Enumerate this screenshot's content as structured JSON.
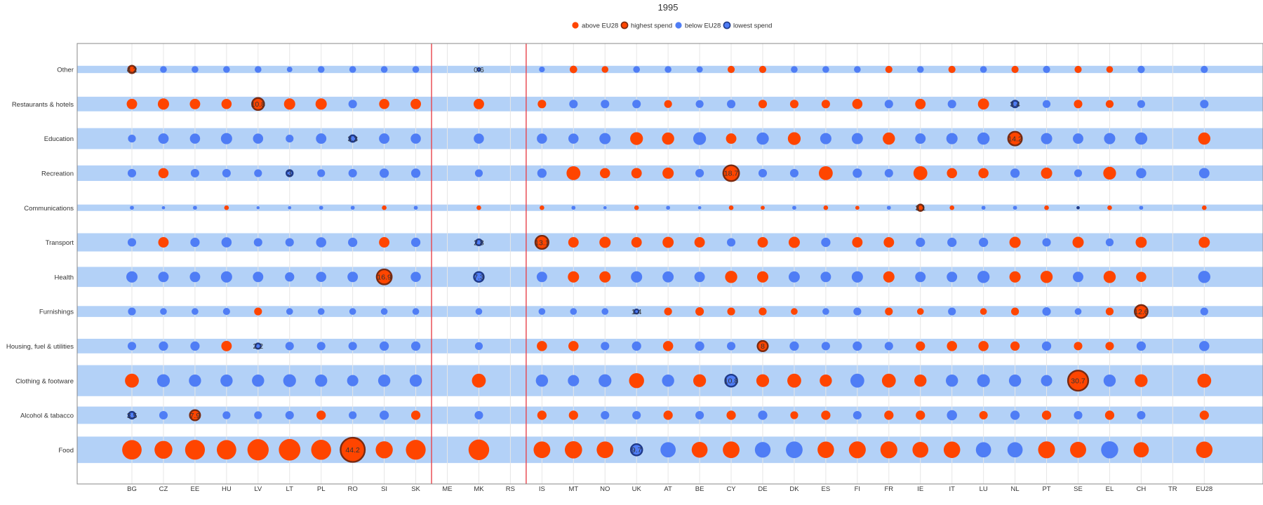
{
  "chart_data": {
    "type": "bubble",
    "title": "1995",
    "legend": {
      "placement": "top-center",
      "items": [
        {
          "key": "above",
          "label": "above EU28",
          "color": "#ff4500",
          "stroke": "none"
        },
        {
          "key": "highest",
          "label": "highest spend",
          "color": "#ff4500",
          "stroke": "#7a2a10"
        },
        {
          "key": "below",
          "label": "below EU28",
          "color": "#4f7df5",
          "stroke": "none"
        },
        {
          "key": "lowest",
          "label": "lowest spend",
          "color": "#4f7df5",
          "stroke": "#1f3a8a"
        }
      ]
    },
    "countries": [
      "BG",
      "CZ",
      "EE",
      "HU",
      "LV",
      "LT",
      "PL",
      "RO",
      "SI",
      "SK",
      "ME",
      "MK",
      "RS",
      "IS",
      "MT",
      "NO",
      "UK",
      "AT",
      "BE",
      "CY",
      "DE",
      "DK",
      "ES",
      "FI",
      "FR",
      "IE",
      "IT",
      "LU",
      "NL",
      "PT",
      "SE",
      "EL",
      "CH",
      "TR",
      "EU28"
    ],
    "separators_after": [
      "SK",
      "RS"
    ],
    "categories": [
      "Other",
      "Restaurants & hotels",
      "Education",
      "Recreation",
      "Communications",
      "Transport",
      "Health",
      "Furnishings",
      "Housing, fuel & utilities",
      "Clothing & footware",
      "Alcohol & tabacco",
      "Food"
    ],
    "category_band_values": [
      4.0,
      8.0,
      11.5,
      8.5,
      3.5,
      10.0,
      11.0,
      6.0,
      8.0,
      17.0,
      9.5,
      14.5
    ],
    "value_codes": "a=above EU28, b=below EU28, h=highest spend, l=lowest spend, n=no data",
    "series": [
      {
        "name": "Other",
        "values": [
          4.2,
          3.4,
          3.4,
          3.4,
          3.4,
          2.3,
          3.4,
          3.4,
          3.4,
          3.4,
          null,
          0.6,
          null,
          2.5,
          4.2,
          3.4,
          3.4,
          3.4,
          3.0,
          3.8,
          3.8,
          3.4,
          3.4,
          3.4,
          3.8,
          3.4,
          3.8,
          3.4,
          3.8,
          3.8,
          3.8,
          3.4,
          4.0,
          null,
          3.8
        ],
        "status": "hbbbbbbbbbnlnbaabbbaabbbabababaabana"
      },
      {
        "name": "Restaurants & hotels",
        "values": [
          8.2,
          9.5,
          8.2,
          7.8,
          10.8,
          9.5,
          9.5,
          5.4,
          7.8,
          8.2,
          null,
          8.2,
          null,
          5.4,
          5.4,
          5.4,
          5.4,
          4.6,
          4.6,
          5.4,
          5.4,
          5.4,
          5.4,
          7.8,
          5.4,
          8.2,
          5.4,
          9.3,
          3.4,
          4.6,
          5.4,
          4.6,
          4.6,
          null,
          5.4
        ],
        "status": "aaaahaabaanana nbbabbaaaabababbaabbna"
      },
      {
        "name": "Education",
        "values": [
          4.6,
          8.2,
          7.8,
          9.5,
          7.8,
          4.6,
          8.2,
          3.3,
          8.2,
          7.8,
          null,
          7.8,
          null,
          7.8,
          7.8,
          9.5,
          12.3,
          11.2,
          12.3,
          8.2,
          11.2,
          12.3,
          9.5,
          9.3,
          11.2,
          8.2,
          9.5,
          11.2,
          14.2,
          9.5,
          8.2,
          9.5,
          11.2,
          null,
          11.2
        ],
        "status": "bbbbbbblbbnbnbbbaababa bbabbbhbbbbna"
      },
      {
        "name": "Recreation",
        "values": [
          5.4,
          7.8,
          5.4,
          5.4,
          4.6,
          3.0,
          4.6,
          5.4,
          6.5,
          6.5,
          null,
          4.6,
          null,
          6.5,
          14.5,
          7.8,
          8.2,
          9.5,
          5.4,
          18.7,
          5.4,
          5.4,
          14.5,
          6.5,
          5.4,
          14.5,
          7.8,
          7.8,
          6.5,
          9.5,
          4.6,
          12.3,
          7.8,
          null,
          8.2
        ],
        "status": "babbblbbbbnbnbaaaabhbbabbaaaba bana"
      },
      {
        "name": "Communications",
        "values": [
          1.2,
          0.8,
          1.2,
          1.6,
          0.7,
          0.8,
          1.2,
          1.2,
          1.6,
          1.2,
          null,
          1.6,
          null,
          1.6,
          1.2,
          0.8,
          1.6,
          1.2,
          0.8,
          1.6,
          1.2,
          1.2,
          1.6,
          1.2,
          1.2,
          3.1,
          1.6,
          1.2,
          1.2,
          1.6,
          0.2,
          1.6,
          1.2,
          null,
          1.6
        ],
        "status": "bbbabbbbabnanabbabbaabaabhabbalabna"
      },
      {
        "name": "Transport",
        "values": [
          5.4,
          8.2,
          6.5,
          7.8,
          5.4,
          5.4,
          7.8,
          6.5,
          8.2,
          6.5,
          null,
          2.8,
          null,
          13.1,
          8.2,
          9.5,
          8.2,
          9.3,
          8.2,
          5.4,
          8.2,
          9.5,
          6.5,
          8.2,
          8.2,
          6.5,
          6.5,
          6.5,
          9.5,
          5.4,
          9.5,
          4.6,
          9.3,
          null,
          9.3
        ],
        "status": "babbbbbbabnlnhaaaaabaabaabbbababana"
      },
      {
        "name": "Health",
        "values": [
          9.5,
          8.2,
          8.2,
          9.5,
          8.2,
          6.5,
          7.8,
          8.2,
          16.9,
          7.8,
          null,
          7.3,
          null,
          8.2,
          9.5,
          9.5,
          9.5,
          9.3,
          8.2,
          11.2,
          9.5,
          9.3,
          8.2,
          9.5,
          9.5,
          8.2,
          8.2,
          11.2,
          9.5,
          11.2,
          8.2,
          11.2,
          7.8,
          null,
          11.2
        ],
        "status": "bbbbbbbbhbnlnbaabbbaabbbabbbaabaabna"
      },
      {
        "name": "Furnishings",
        "values": [
          4.6,
          3.4,
          3.4,
          3.8,
          4.6,
          3.4,
          3.4,
          3.4,
          3.4,
          3.4,
          null,
          3.4,
          null,
          3.4,
          3.4,
          3.4,
          1.4,
          4.6,
          5.4,
          4.6,
          4.6,
          3.4,
          3.4,
          4.6,
          4.6,
          3.4,
          4.6,
          3.4,
          4.6,
          5.4,
          3.4,
          4.6,
          12.6,
          null,
          4.6
        ],
        "status": "bbbbabbbbbnbnbbbbaaaaabbaabaabbaahna"
      },
      {
        "name": "Housing, fuel & utilities",
        "values": [
          5.4,
          6.5,
          6.5,
          8.2,
          2.2,
          5.4,
          5.4,
          5.4,
          6.5,
          6.5,
          null,
          4.6,
          null,
          7.8,
          7.8,
          5.4,
          6.5,
          7.8,
          6.5,
          5.4,
          8.0,
          6.5,
          5.4,
          6.5,
          5.4,
          6.5,
          7.8,
          7.8,
          6.5,
          6.5,
          5.4,
          5.4,
          6.5,
          null,
          7.8
        ],
        "status": "bbbalbbbbbnbnaabbabbhbbbbaaaabaabbna"
      },
      {
        "name": "Clothing & footware",
        "values": [
          14.5,
          12.3,
          11.2,
          11.2,
          11.2,
          12.3,
          11.2,
          9.5,
          11.2,
          11.2,
          null,
          14.5,
          null,
          11.2,
          9.5,
          12.3,
          17.0,
          11.2,
          12.3,
          10.8,
          12.3,
          14.5,
          11.2,
          14.5,
          14.5,
          11.2,
          11.2,
          12.3,
          11.2,
          9.5,
          30.7,
          11.2,
          12.3,
          null,
          14.5
        ],
        "status": "abbbbbbbbbnanbbbabalaaabaabbbbhbana"
      },
      {
        "name": "Alcohol & tabacco",
        "values": [
          3.5,
          5.4,
          7.9,
          4.6,
          4.6,
          5.4,
          6.5,
          4.6,
          6.5,
          6.5,
          null,
          5.4,
          null,
          6.5,
          6.5,
          5.4,
          5.4,
          6.5,
          5.4,
          6.5,
          6.5,
          4.6,
          6.5,
          5.4,
          6.5,
          6.5,
          7.8,
          5.4,
          6.5,
          6.5,
          5.4,
          6.5,
          5.4,
          null,
          6.5
        ],
        "status": "lbhbbbabbanbnaabbababaabaabababab na"
      },
      {
        "name": "Food",
        "values": [
          28.5,
          24.0,
          29.5,
          28.5,
          34.0,
          35.0,
          30.0,
          44.2,
          22.0,
          29.5,
          null,
          32.0,
          null,
          21.0,
          22.5,
          21.0,
          9.7,
          17.5,
          19.0,
          21.0,
          18.5,
          21.0,
          20.5,
          21.5,
          21.5,
          19.0,
          20.5,
          17.5,
          17.5,
          21.5,
          19.5,
          22.0,
          17.5,
          null,
          20.5
        ],
        "status": "aaaaaaahaanana aalbaabbaaaaabbaabana"
      }
    ],
    "labeled_points": [
      {
        "category": "Other",
        "country": "BG",
        "label": "4.2",
        "kind": "highest"
      },
      {
        "category": "Other",
        "country": "MK",
        "label": "0.6",
        "kind": "lowest"
      },
      {
        "category": "Restaurants & hotels",
        "country": "LV",
        "label": "10.8",
        "kind": "highest"
      },
      {
        "category": "Restaurants & hotels",
        "country": "NL",
        "label": "3.4",
        "kind": "lowest"
      },
      {
        "category": "Education",
        "country": "RO",
        "label": "3.3",
        "kind": "lowest"
      },
      {
        "category": "Education",
        "country": "NL",
        "label": "14.2",
        "kind": "highest"
      },
      {
        "category": "Recreation",
        "country": "LT",
        "label": "3",
        "kind": "lowest"
      },
      {
        "category": "Recreation",
        "country": "CY",
        "label": "18.7",
        "kind": "highest"
      },
      {
        "category": "Communications",
        "country": "IE",
        "label": "3.1",
        "kind": "highest"
      },
      {
        "category": "Transport",
        "country": "MK",
        "label": "2.8",
        "kind": "lowest"
      },
      {
        "category": "Transport",
        "country": "IS",
        "label": "13.1",
        "kind": "highest"
      },
      {
        "category": "Health",
        "country": "SI",
        "label": "16.9",
        "kind": "highest"
      },
      {
        "category": "Health",
        "country": "MK",
        "label": "7.3",
        "kind": "lowest"
      },
      {
        "category": "Furnishings",
        "country": "UK",
        "label": "1.4",
        "kind": "lowest"
      },
      {
        "category": "Furnishings",
        "country": "CH",
        "label": "12.6",
        "kind": "highest"
      },
      {
        "category": "Housing, fuel & utilities",
        "country": "LV",
        "label": "2.2",
        "kind": "lowest"
      },
      {
        "category": "Housing, fuel & utilities",
        "country": "DE",
        "label": "8",
        "kind": "highest"
      },
      {
        "category": "Clothing & footware",
        "country": "CY",
        "label": "10.8",
        "kind": "lowest"
      },
      {
        "category": "Clothing & footware",
        "country": "SE",
        "label": "30.7",
        "kind": "highest"
      },
      {
        "category": "Alcohol & tabacco",
        "country": "BG",
        "label": "3.5",
        "kind": "lowest"
      },
      {
        "category": "Alcohol & tabacco",
        "country": "EE",
        "label": "7.9",
        "kind": "highest"
      },
      {
        "category": "Food",
        "country": "RO",
        "label": "44.2",
        "kind": "highest"
      },
      {
        "category": "Food",
        "country": "UK",
        "label": "9.7",
        "kind": "lowest"
      }
    ],
    "colors": {
      "above": "#ff4500",
      "below": "#4f7df5",
      "band": "#b3d1f7",
      "separator": "#e8434a",
      "grid": "#e6e6e6",
      "frame": "#888888",
      "highest_ring": "#7a2a10",
      "lowest_ring": "#1f3a8a"
    }
  }
}
